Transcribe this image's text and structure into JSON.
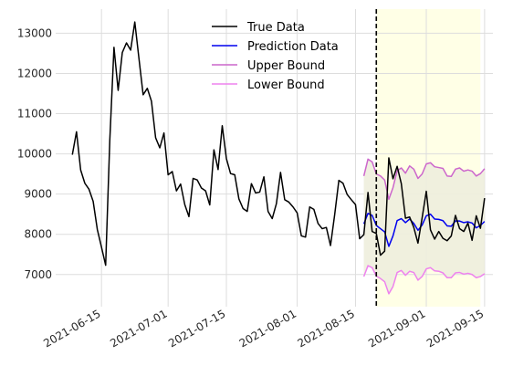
{
  "chart_data": {
    "type": "line",
    "title": "",
    "xlabel": "",
    "ylabel": "",
    "x_axis": "date",
    "xlim": [
      "2021-06-04",
      "2021-09-17"
    ],
    "ylim": [
      6200,
      13600
    ],
    "grid": true,
    "legend_placement": "top-center",
    "forecast_start": "2021-08-20",
    "forecast_end": "2021-09-14",
    "x_ticks": [
      "2021-06-15",
      "2021-07-01",
      "2021-07-15",
      "2021-08-01",
      "2021-08-15",
      "2021-09-01",
      "2021-09-15"
    ],
    "y_ticks": [
      7000,
      8000,
      9000,
      10000,
      11000,
      12000,
      13000
    ],
    "series": [
      {
        "name": "True Data",
        "color": "#000000",
        "points": [
          [
            "2021-06-08",
            9980
          ],
          [
            "2021-06-09",
            10550
          ],
          [
            "2021-06-10",
            9600
          ],
          [
            "2021-06-11",
            9270
          ],
          [
            "2021-06-12",
            9120
          ],
          [
            "2021-06-13",
            8820
          ],
          [
            "2021-06-14",
            8120
          ],
          [
            "2021-06-15",
            7680
          ],
          [
            "2021-06-16",
            7230
          ],
          [
            "2021-06-17",
            10350
          ],
          [
            "2021-06-18",
            12650
          ],
          [
            "2021-06-19",
            11580
          ],
          [
            "2021-06-20",
            12520
          ],
          [
            "2021-06-21",
            12760
          ],
          [
            "2021-06-22",
            12580
          ],
          [
            "2021-06-23",
            13280
          ],
          [
            "2021-06-24",
            12370
          ],
          [
            "2021-06-25",
            11470
          ],
          [
            "2021-06-26",
            11630
          ],
          [
            "2021-06-27",
            11310
          ],
          [
            "2021-06-28",
            10400
          ],
          [
            "2021-06-29",
            10150
          ],
          [
            "2021-06-30",
            10520
          ],
          [
            "2021-07-01",
            9480
          ],
          [
            "2021-07-02",
            9560
          ],
          [
            "2021-07-03",
            9080
          ],
          [
            "2021-07-04",
            9250
          ],
          [
            "2021-07-05",
            8740
          ],
          [
            "2021-07-06",
            8440
          ],
          [
            "2021-07-07",
            9390
          ],
          [
            "2021-07-08",
            9350
          ],
          [
            "2021-07-09",
            9150
          ],
          [
            "2021-07-10",
            9080
          ],
          [
            "2021-07-11",
            8730
          ],
          [
            "2021-07-12",
            10100
          ],
          [
            "2021-07-13",
            9610
          ],
          [
            "2021-07-14",
            10700
          ],
          [
            "2021-07-15",
            9880
          ],
          [
            "2021-07-16",
            9510
          ],
          [
            "2021-07-17",
            9480
          ],
          [
            "2021-07-18",
            8880
          ],
          [
            "2021-07-19",
            8640
          ],
          [
            "2021-07-20",
            8570
          ],
          [
            "2021-07-21",
            9260
          ],
          [
            "2021-07-22",
            9030
          ],
          [
            "2021-07-23",
            9050
          ],
          [
            "2021-07-24",
            9430
          ],
          [
            "2021-07-25",
            8570
          ],
          [
            "2021-07-26",
            8390
          ],
          [
            "2021-07-27",
            8760
          ],
          [
            "2021-07-28",
            9540
          ],
          [
            "2021-07-29",
            8860
          ],
          [
            "2021-07-30",
            8800
          ],
          [
            "2021-07-31",
            8680
          ],
          [
            "2021-08-01",
            8530
          ],
          [
            "2021-08-02",
            7960
          ],
          [
            "2021-08-03",
            7930
          ],
          [
            "2021-08-04",
            8680
          ],
          [
            "2021-08-05",
            8620
          ],
          [
            "2021-08-06",
            8270
          ],
          [
            "2021-08-07",
            8140
          ],
          [
            "2021-08-08",
            8170
          ],
          [
            "2021-08-09",
            7720
          ],
          [
            "2021-08-10",
            8490
          ],
          [
            "2021-08-11",
            9340
          ],
          [
            "2021-08-12",
            9270
          ],
          [
            "2021-08-13",
            8990
          ],
          [
            "2021-08-14",
            8860
          ],
          [
            "2021-08-15",
            8740
          ],
          [
            "2021-08-16",
            7890
          ],
          [
            "2021-08-17",
            7990
          ],
          [
            "2021-08-18",
            9040
          ],
          [
            "2021-08-19",
            8070
          ],
          [
            "2021-08-20",
            8020
          ],
          [
            "2021-08-21",
            7480
          ],
          [
            "2021-08-22",
            7580
          ],
          [
            "2021-08-23",
            9900
          ],
          [
            "2021-08-24",
            9380
          ],
          [
            "2021-08-25",
            9690
          ],
          [
            "2021-08-26",
            9260
          ],
          [
            "2021-08-27",
            8400
          ],
          [
            "2021-08-28",
            8430
          ],
          [
            "2021-08-29",
            8170
          ],
          [
            "2021-08-30",
            7780
          ],
          [
            "2021-08-31",
            8410
          ],
          [
            "2021-09-01",
            9070
          ],
          [
            "2021-09-02",
            8110
          ],
          [
            "2021-09-03",
            7880
          ],
          [
            "2021-09-04",
            8070
          ],
          [
            "2021-09-05",
            7900
          ],
          [
            "2021-09-06",
            7840
          ],
          [
            "2021-09-07",
            7960
          ],
          [
            "2021-09-08",
            8470
          ],
          [
            "2021-09-09",
            8140
          ],
          [
            "2021-09-10",
            8070
          ],
          [
            "2021-09-11",
            8280
          ],
          [
            "2021-09-12",
            7850
          ],
          [
            "2021-09-13",
            8460
          ],
          [
            "2021-09-14",
            8150
          ],
          [
            "2021-09-15",
            8900
          ]
        ]
      },
      {
        "name": "Prediction Data",
        "color": "#0000ee",
        "points": [
          [
            "2021-08-17",
            8260
          ],
          [
            "2021-08-18",
            8520
          ],
          [
            "2021-08-19",
            8470
          ],
          [
            "2021-08-20",
            8220
          ],
          [
            "2021-08-21",
            8140
          ],
          [
            "2021-08-22",
            8060
          ],
          [
            "2021-08-23",
            7700
          ],
          [
            "2021-08-24",
            7960
          ],
          [
            "2021-08-25",
            8340
          ],
          [
            "2021-08-26",
            8390
          ],
          [
            "2021-08-27",
            8290
          ],
          [
            "2021-08-28",
            8380
          ],
          [
            "2021-08-29",
            8270
          ],
          [
            "2021-08-30",
            8100
          ],
          [
            "2021-08-31",
            8230
          ],
          [
            "2021-09-01",
            8460
          ],
          [
            "2021-09-02",
            8500
          ],
          [
            "2021-09-03",
            8380
          ],
          [
            "2021-09-04",
            8370
          ],
          [
            "2021-09-05",
            8340
          ],
          [
            "2021-09-06",
            8210
          ],
          [
            "2021-09-07",
            8200
          ],
          [
            "2021-09-08",
            8330
          ],
          [
            "2021-09-09",
            8330
          ],
          [
            "2021-09-10",
            8290
          ],
          [
            "2021-09-11",
            8310
          ],
          [
            "2021-09-12",
            8280
          ],
          [
            "2021-09-13",
            8160
          ],
          [
            "2021-09-14",
            8220
          ],
          [
            "2021-09-15",
            8320
          ]
        ]
      },
      {
        "name": "Upper Bound",
        "color": "#cc66cc",
        "points": [
          [
            "2021-08-17",
            9450
          ],
          [
            "2021-08-18",
            9870
          ],
          [
            "2021-08-19",
            9800
          ],
          [
            "2021-08-20",
            9500
          ],
          [
            "2021-08-21",
            9450
          ],
          [
            "2021-08-22",
            9350
          ],
          [
            "2021-08-23",
            8870
          ],
          [
            "2021-08-24",
            9160
          ],
          [
            "2021-08-25",
            9580
          ],
          [
            "2021-08-26",
            9650
          ],
          [
            "2021-08-27",
            9520
          ],
          [
            "2021-08-28",
            9700
          ],
          [
            "2021-08-29",
            9620
          ],
          [
            "2021-08-30",
            9390
          ],
          [
            "2021-08-31",
            9500
          ],
          [
            "2021-09-01",
            9750
          ],
          [
            "2021-09-02",
            9780
          ],
          [
            "2021-09-03",
            9680
          ],
          [
            "2021-09-04",
            9660
          ],
          [
            "2021-09-05",
            9640
          ],
          [
            "2021-09-06",
            9450
          ],
          [
            "2021-09-07",
            9440
          ],
          [
            "2021-09-08",
            9620
          ],
          [
            "2021-09-09",
            9650
          ],
          [
            "2021-09-10",
            9570
          ],
          [
            "2021-09-11",
            9600
          ],
          [
            "2021-09-12",
            9570
          ],
          [
            "2021-09-13",
            9450
          ],
          [
            "2021-09-14",
            9510
          ],
          [
            "2021-09-15",
            9630
          ]
        ]
      },
      {
        "name": "Lower Bound",
        "color": "#ee82ee",
        "points": [
          [
            "2021-08-17",
            6950
          ],
          [
            "2021-08-18",
            7220
          ],
          [
            "2021-08-19",
            7170
          ],
          [
            "2021-08-20",
            6960
          ],
          [
            "2021-08-21",
            6900
          ],
          [
            "2021-08-22",
            6820
          ],
          [
            "2021-08-23",
            6520
          ],
          [
            "2021-08-24",
            6700
          ],
          [
            "2021-08-25",
            7050
          ],
          [
            "2021-08-26",
            7100
          ],
          [
            "2021-08-27",
            6980
          ],
          [
            "2021-08-28",
            7080
          ],
          [
            "2021-08-29",
            7050
          ],
          [
            "2021-08-30",
            6860
          ],
          [
            "2021-08-31",
            6950
          ],
          [
            "2021-09-01",
            7140
          ],
          [
            "2021-09-02",
            7170
          ],
          [
            "2021-09-03",
            7090
          ],
          [
            "2021-09-04",
            7080
          ],
          [
            "2021-09-05",
            7040
          ],
          [
            "2021-09-06",
            6920
          ],
          [
            "2021-09-07",
            6920
          ],
          [
            "2021-09-08",
            7040
          ],
          [
            "2021-09-09",
            7050
          ],
          [
            "2021-09-10",
            7010
          ],
          [
            "2021-09-11",
            7030
          ],
          [
            "2021-09-12",
            7000
          ],
          [
            "2021-09-13",
            6920
          ],
          [
            "2021-09-14",
            6950
          ],
          [
            "2021-09-15",
            7020
          ]
        ]
      }
    ],
    "colors": {
      "forecast_region": "#ffffe6",
      "band_fill": "#eeeedd",
      "grid": "#dddddd",
      "divider": "#000000"
    }
  }
}
